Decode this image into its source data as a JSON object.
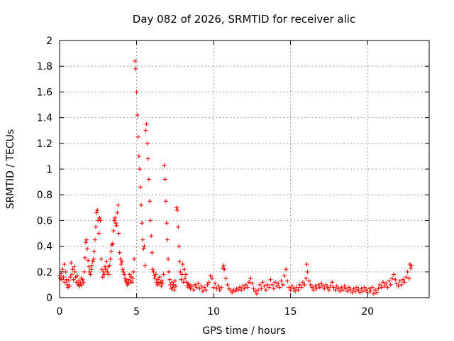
{
  "chart_data": {
    "type": "scatter",
    "title": "Day 082 of 2026, SRMTID for receiver alic",
    "xlabel": "GPS time / hours",
    "ylabel": "SRMTID / TECUs",
    "xlim": [
      0,
      24
    ],
    "ylim": [
      0,
      2
    ],
    "xticks": [
      0,
      5,
      10,
      15,
      20
    ],
    "yticks": [
      0,
      0.2,
      0.4,
      0.6,
      0.8,
      1,
      1.2,
      1.4,
      1.6,
      1.8,
      2
    ],
    "xtick_labels": [
      "0",
      "5",
      "10",
      "15",
      "20"
    ],
    "ytick_labels": [
      "0",
      "0.2",
      "0.4",
      "0.6",
      "0.8",
      "1",
      "1.2",
      "1.4",
      "1.6",
      "1.8",
      "2"
    ],
    "grid": true,
    "marker": "plus",
    "color": "#ff0000",
    "series": [
      {
        "name": "SRMTID",
        "points": [
          [
            0.0,
            0.17
          ],
          [
            0.05,
            0.15
          ],
          [
            0.1,
            0.19
          ],
          [
            0.15,
            0.14
          ],
          [
            0.2,
            0.22
          ],
          [
            0.25,
            0.16
          ],
          [
            0.3,
            0.26
          ],
          [
            0.35,
            0.12
          ],
          [
            0.4,
            0.2
          ],
          [
            0.45,
            0.14
          ],
          [
            0.5,
            0.1
          ],
          [
            0.55,
            0.08
          ],
          [
            0.6,
            0.13
          ],
          [
            0.65,
            0.09
          ],
          [
            0.7,
            0.16
          ],
          [
            0.75,
            0.27
          ],
          [
            0.8,
            0.18
          ],
          [
            0.85,
            0.22
          ],
          [
            0.9,
            0.14
          ],
          [
            0.95,
            0.24
          ],
          [
            1.0,
            0.2
          ],
          [
            1.05,
            0.16
          ],
          [
            1.1,
            0.12
          ],
          [
            1.15,
            0.17
          ],
          [
            1.2,
            0.1
          ],
          [
            1.25,
            0.13
          ],
          [
            1.3,
            0.09
          ],
          [
            1.35,
            0.11
          ],
          [
            1.4,
            0.15
          ],
          [
            1.45,
            0.1
          ],
          [
            1.5,
            0.14
          ],
          [
            1.55,
            0.12
          ],
          [
            1.6,
            0.2
          ],
          [
            1.65,
            0.31
          ],
          [
            1.7,
            0.43
          ],
          [
            1.75,
            0.45
          ],
          [
            1.8,
            0.38
          ],
          [
            1.85,
            0.29
          ],
          [
            1.9,
            0.24
          ],
          [
            1.95,
            0.2
          ],
          [
            2.0,
            0.18
          ],
          [
            2.05,
            0.22
          ],
          [
            2.1,
            0.25
          ],
          [
            2.15,
            0.28
          ],
          [
            2.2,
            0.3
          ],
          [
            2.25,
            0.36
          ],
          [
            2.3,
            0.45
          ],
          [
            2.35,
            0.55
          ],
          [
            2.4,
            0.66
          ],
          [
            2.45,
            0.68
          ],
          [
            2.5,
            0.6
          ],
          [
            2.55,
            0.5
          ],
          [
            2.6,
            0.62
          ],
          [
            2.65,
            0.6
          ],
          [
            2.7,
            0.3
          ],
          [
            2.75,
            0.22
          ],
          [
            2.8,
            0.16
          ],
          [
            2.85,
            0.2
          ],
          [
            2.9,
            0.18
          ],
          [
            2.95,
            0.24
          ],
          [
            3.0,
            0.22
          ],
          [
            3.05,
            0.28
          ],
          [
            3.1,
            0.2
          ],
          [
            3.15,
            0.24
          ],
          [
            3.2,
            0.18
          ],
          [
            3.25,
            0.25
          ],
          [
            3.3,
            0.3
          ],
          [
            3.35,
            0.36
          ],
          [
            3.4,
            0.41
          ],
          [
            3.45,
            0.42
          ],
          [
            3.5,
            0.52
          ],
          [
            3.55,
            0.6
          ],
          [
            3.6,
            0.62
          ],
          [
            3.65,
            0.58
          ],
          [
            3.7,
            0.56
          ],
          [
            3.75,
            0.66
          ],
          [
            3.8,
            0.72
          ],
          [
            3.85,
            0.5
          ],
          [
            3.9,
            0.35
          ],
          [
            3.95,
            0.3
          ],
          [
            4.0,
            0.26
          ],
          [
            4.05,
            0.28
          ],
          [
            4.1,
            0.22
          ],
          [
            4.15,
            0.2
          ],
          [
            4.2,
            0.18
          ],
          [
            4.25,
            0.15
          ],
          [
            4.3,
            0.13
          ],
          [
            4.35,
            0.12
          ],
          [
            4.4,
            0.1
          ],
          [
            4.45,
            0.14
          ],
          [
            4.5,
            0.11
          ],
          [
            4.55,
            0.18
          ],
          [
            4.6,
            0.13
          ],
          [
            4.65,
            0.16
          ],
          [
            4.7,
            0.12
          ],
          [
            4.75,
            0.15
          ],
          [
            4.8,
            0.2
          ],
          [
            4.85,
            0.3
          ],
          [
            4.9,
            1.84
          ],
          [
            4.95,
            1.78
          ],
          [
            5.0,
            1.6
          ],
          [
            5.05,
            1.42
          ],
          [
            5.1,
            1.25
          ],
          [
            5.15,
            1.1
          ],
          [
            5.2,
            1.0
          ],
          [
            5.25,
            0.86
          ],
          [
            5.3,
            0.72
          ],
          [
            5.35,
            0.58
          ],
          [
            5.4,
            0.45
          ],
          [
            5.45,
            0.38
          ],
          [
            5.5,
            0.4
          ],
          [
            5.55,
            0.25
          ],
          [
            5.6,
            1.3
          ],
          [
            5.65,
            1.35
          ],
          [
            5.7,
            1.2
          ],
          [
            5.75,
            1.08
          ],
          [
            5.8,
            0.92
          ],
          [
            5.85,
            0.75
          ],
          [
            5.9,
            0.6
          ],
          [
            5.95,
            0.48
          ],
          [
            6.0,
            0.35
          ],
          [
            6.05,
            0.22
          ],
          [
            6.1,
            0.2
          ],
          [
            6.15,
            0.17
          ],
          [
            6.2,
            0.15
          ],
          [
            6.25,
            0.18
          ],
          [
            6.3,
            0.12
          ],
          [
            6.35,
            0.1
          ],
          [
            6.4,
            0.14
          ],
          [
            6.45,
            0.11
          ],
          [
            6.5,
            0.16
          ],
          [
            6.55,
            0.12
          ],
          [
            6.6,
            0.09
          ],
          [
            6.65,
            0.13
          ],
          [
            6.7,
            0.11
          ],
          [
            6.75,
            0.18
          ],
          [
            6.8,
            1.03
          ],
          [
            6.85,
            0.92
          ],
          [
            6.9,
            0.75
          ],
          [
            6.95,
            0.58
          ],
          [
            7.0,
            0.45
          ],
          [
            7.05,
            0.3
          ],
          [
            7.1,
            0.2
          ],
          [
            7.15,
            0.14
          ],
          [
            7.2,
            0.1
          ],
          [
            7.25,
            0.07
          ],
          [
            7.3,
            0.12
          ],
          [
            7.35,
            0.08
          ],
          [
            7.4,
            0.1
          ],
          [
            7.45,
            0.06
          ],
          [
            7.5,
            0.13
          ],
          [
            7.55,
            0.09
          ],
          [
            7.6,
            0.7
          ],
          [
            7.65,
            0.68
          ],
          [
            7.7,
            0.55
          ],
          [
            7.75,
            0.4
          ],
          [
            7.8,
            0.28
          ],
          [
            7.85,
            0.2
          ],
          [
            7.9,
            0.14
          ],
          [
            7.95,
            0.18
          ],
          [
            8.0,
            0.26
          ],
          [
            8.05,
            0.12
          ],
          [
            8.1,
            0.22
          ],
          [
            8.15,
            0.15
          ],
          [
            8.2,
            0.18
          ],
          [
            8.25,
            0.12
          ],
          [
            8.3,
            0.09
          ],
          [
            8.35,
            0.11
          ],
          [
            8.4,
            0.08
          ],
          [
            8.45,
            0.1
          ],
          [
            8.5,
            0.07
          ],
          [
            8.6,
            0.09
          ],
          [
            8.7,
            0.06
          ],
          [
            8.8,
            0.1
          ],
          [
            8.9,
            0.08
          ],
          [
            9.0,
            0.11
          ],
          [
            9.1,
            0.07
          ],
          [
            9.2,
            0.09
          ],
          [
            9.3,
            0.05
          ],
          [
            9.4,
            0.08
          ],
          [
            9.5,
            0.06
          ],
          [
            9.6,
            0.1
          ],
          [
            9.7,
            0.12
          ],
          [
            9.8,
            0.17
          ],
          [
            9.9,
            0.15
          ],
          [
            10.0,
            0.08
          ],
          [
            10.1,
            0.11
          ],
          [
            10.2,
            0.07
          ],
          [
            10.3,
            0.09
          ],
          [
            10.4,
            0.06
          ],
          [
            10.5,
            0.08
          ],
          [
            10.6,
            0.23
          ],
          [
            10.65,
            0.25
          ],
          [
            10.7,
            0.22
          ],
          [
            10.8,
            0.15
          ],
          [
            10.9,
            0.1
          ],
          [
            11.0,
            0.07
          ],
          [
            11.1,
            0.06
          ],
          [
            11.2,
            0.04
          ],
          [
            11.3,
            0.06
          ],
          [
            11.4,
            0.05
          ],
          [
            11.5,
            0.07
          ],
          [
            11.6,
            0.06
          ],
          [
            11.7,
            0.08
          ],
          [
            11.8,
            0.06
          ],
          [
            11.9,
            0.09
          ],
          [
            12.0,
            0.07
          ],
          [
            12.1,
            0.1
          ],
          [
            12.2,
            0.08
          ],
          [
            12.3,
            0.12
          ],
          [
            12.4,
            0.15
          ],
          [
            12.5,
            0.11
          ],
          [
            12.6,
            0.07
          ],
          [
            12.7,
            0.05
          ],
          [
            12.8,
            0.03
          ],
          [
            12.9,
            0.06
          ],
          [
            13.0,
            0.1
          ],
          [
            13.1,
            0.07
          ],
          [
            13.2,
            0.12
          ],
          [
            13.3,
            0.09
          ],
          [
            13.4,
            0.06
          ],
          [
            13.5,
            0.1
          ],
          [
            13.6,
            0.08
          ],
          [
            13.7,
            0.14
          ],
          [
            13.8,
            0.1
          ],
          [
            13.9,
            0.07
          ],
          [
            14.0,
            0.12
          ],
          [
            14.1,
            0.09
          ],
          [
            14.2,
            0.11
          ],
          [
            14.3,
            0.08
          ],
          [
            14.4,
            0.13
          ],
          [
            14.5,
            0.1
          ],
          [
            14.6,
            0.17
          ],
          [
            14.7,
            0.22
          ],
          [
            14.8,
            0.13
          ],
          [
            14.9,
            0.08
          ],
          [
            15.0,
            0.06
          ],
          [
            15.1,
            0.09
          ],
          [
            15.2,
            0.07
          ],
          [
            15.3,
            0.05
          ],
          [
            15.4,
            0.08
          ],
          [
            15.5,
            0.06
          ],
          [
            15.6,
            0.1
          ],
          [
            15.7,
            0.08
          ],
          [
            15.8,
            0.12
          ],
          [
            15.9,
            0.1
          ],
          [
            16.0,
            0.15
          ],
          [
            16.05,
            0.26
          ],
          [
            16.1,
            0.2
          ],
          [
            16.2,
            0.13
          ],
          [
            16.3,
            0.1
          ],
          [
            16.4,
            0.08
          ],
          [
            16.5,
            0.06
          ],
          [
            16.6,
            0.09
          ],
          [
            16.7,
            0.07
          ],
          [
            16.8,
            0.1
          ],
          [
            16.9,
            0.08
          ],
          [
            17.0,
            0.11
          ],
          [
            17.1,
            0.09
          ],
          [
            17.2,
            0.07
          ],
          [
            17.3,
            0.1
          ],
          [
            17.4,
            0.08
          ],
          [
            17.5,
            0.06
          ],
          [
            17.6,
            0.09
          ],
          [
            17.7,
            0.12
          ],
          [
            17.8,
            0.08
          ],
          [
            17.9,
            0.06
          ],
          [
            18.0,
            0.09
          ],
          [
            18.1,
            0.07
          ],
          [
            18.2,
            0.05
          ],
          [
            18.3,
            0.08
          ],
          [
            18.4,
            0.06
          ],
          [
            18.5,
            0.09
          ],
          [
            18.6,
            0.07
          ],
          [
            18.7,
            0.05
          ],
          [
            18.8,
            0.08
          ],
          [
            18.9,
            0.06
          ],
          [
            19.0,
            0.04
          ],
          [
            19.1,
            0.07
          ],
          [
            19.2,
            0.05
          ],
          [
            19.3,
            0.08
          ],
          [
            19.4,
            0.06
          ],
          [
            19.5,
            0.04
          ],
          [
            19.6,
            0.07
          ],
          [
            19.7,
            0.05
          ],
          [
            19.8,
            0.08
          ],
          [
            19.9,
            0.06
          ],
          [
            20.0,
            0.04
          ],
          [
            20.1,
            0.07
          ],
          [
            20.2,
            0.05
          ],
          [
            20.3,
            0.08
          ],
          [
            20.4,
            0.03
          ],
          [
            20.5,
            0.06
          ],
          [
            20.6,
            0.04
          ],
          [
            20.7,
            0.07
          ],
          [
            20.8,
            0.1
          ],
          [
            20.9,
            0.08
          ],
          [
            21.0,
            0.12
          ],
          [
            21.1,
            0.09
          ],
          [
            21.2,
            0.11
          ],
          [
            21.3,
            0.08
          ],
          [
            21.4,
            0.13
          ],
          [
            21.5,
            0.1
          ],
          [
            21.6,
            0.15
          ],
          [
            21.7,
            0.18
          ],
          [
            21.8,
            0.14
          ],
          [
            21.9,
            0.11
          ],
          [
            22.0,
            0.09
          ],
          [
            22.1,
            0.13
          ],
          [
            22.2,
            0.1
          ],
          [
            22.3,
            0.14
          ],
          [
            22.4,
            0.12
          ],
          [
            22.5,
            0.16
          ],
          [
            22.6,
            0.2
          ],
          [
            22.7,
            0.15
          ],
          [
            22.75,
            0.26
          ],
          [
            22.8,
            0.23
          ],
          [
            22.85,
            0.25
          ]
        ]
      }
    ]
  }
}
